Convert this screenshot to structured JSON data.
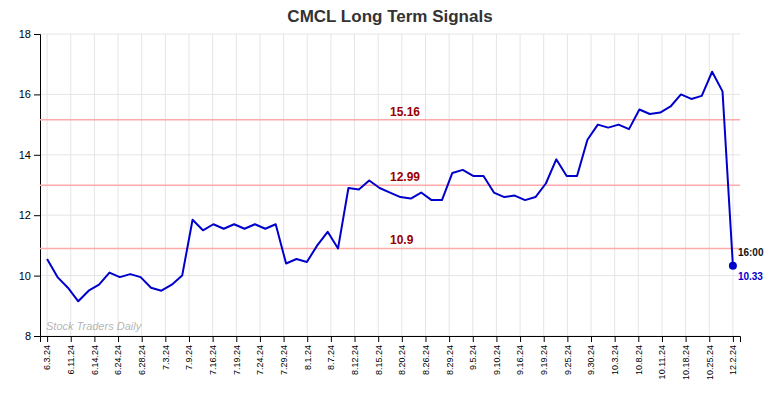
{
  "chart_data": {
    "type": "line",
    "title": "CMCL Long Term Signals",
    "color": "#0000cc",
    "x": [
      0,
      0.439394,
      0.878788,
      1.318182,
      1.757576,
      2.19697,
      2.636364,
      3.075758,
      3.515152,
      3.954545,
      4.393939,
      4.833333,
      5.272727,
      5.712121,
      6.151515,
      6.590909,
      7.030303,
      7.469697,
      7.909091,
      8.348485,
      8.787879,
      9.227273,
      9.666667,
      10.106061,
      10.545455,
      10.984848,
      11.424242,
      11.863636,
      12.30303,
      12.742424,
      13.181818,
      13.621212,
      14.060606,
      14.5,
      14.939394,
      15.378788,
      15.818182,
      16.257576,
      16.69697,
      17.136364,
      17.575758,
      18.015152,
      18.454545,
      18.893939,
      19.333333,
      19.772727,
      20.212121,
      20.651515,
      21.090909,
      21.530303,
      21.969697,
      22.409091,
      22.848485,
      23.287879,
      23.727273,
      24.166667,
      24.606061,
      25.045455,
      25.484848,
      25.924242,
      26.363636,
      26.80303,
      27.242424,
      27.681818,
      28.121212,
      28.560606,
      29
    ],
    "values": [
      10.55,
      9.95,
      9.6,
      9.15,
      9.5,
      9.7,
      10.1,
      9.95,
      10.05,
      9.95,
      9.6,
      9.5,
      9.7,
      10.0,
      11.85,
      11.5,
      11.7,
      11.55,
      11.7,
      11.55,
      11.7,
      11.55,
      11.7,
      10.4,
      10.55,
      10.45,
      11.0,
      11.45,
      10.9,
      12.9,
      12.85,
      13.15,
      12.9,
      12.75,
      12.6,
      12.55,
      12.75,
      12.5,
      12.5,
      13.4,
      13.5,
      13.3,
      13.3,
      12.75,
      12.6,
      12.65,
      12.5,
      12.6,
      13.05,
      13.85,
      13.3,
      13.3,
      14.5,
      15.0,
      14.9,
      15.0,
      14.85,
      15.5,
      15.35,
      15.4,
      15.6,
      16.0,
      15.85,
      15.95,
      16.75,
      16.1,
      10.33
    ],
    "xlim": [
      -0.3,
      29.3
    ],
    "xticks": [
      {
        "value": 0,
        "label": "6.3.24"
      },
      {
        "value": 1,
        "label": "6.11.24"
      },
      {
        "value": 2,
        "label": "6.14.24"
      },
      {
        "value": 3,
        "label": "6.24.24"
      },
      {
        "value": 4,
        "label": "6.28.24"
      },
      {
        "value": 5,
        "label": "7.3.24"
      },
      {
        "value": 6,
        "label": "7.9.24"
      },
      {
        "value": 7,
        "label": "7.16.24"
      },
      {
        "value": 8,
        "label": "7.19.24"
      },
      {
        "value": 9,
        "label": "7.24.24"
      },
      {
        "value": 10,
        "label": "7.29.24"
      },
      {
        "value": 11,
        "label": "8.1.24"
      },
      {
        "value": 12,
        "label": "8.7.24"
      },
      {
        "value": 13,
        "label": "8.12.24"
      },
      {
        "value": 14,
        "label": "8.15.24"
      },
      {
        "value": 15,
        "label": "8.20.24"
      },
      {
        "value": 16,
        "label": "8.26.24"
      },
      {
        "value": 17,
        "label": "8.29.24"
      },
      {
        "value": 18,
        "label": "9.5.24"
      },
      {
        "value": 19,
        "label": "9.10.24"
      },
      {
        "value": 20,
        "label": "9.16.24"
      },
      {
        "value": 21,
        "label": "9.19.24"
      },
      {
        "value": 22,
        "label": "9.25.24"
      },
      {
        "value": 23,
        "label": "9.30.24"
      },
      {
        "value": 24,
        "label": "10.3.24"
      },
      {
        "value": 25,
        "label": "10.8.24"
      },
      {
        "value": 26,
        "label": "10.11.24"
      },
      {
        "value": 27,
        "label": "10.18.24"
      },
      {
        "value": 28,
        "label": "10.25.24"
      },
      {
        "value": 29,
        "label": "12.2.24"
      }
    ],
    "ylim": [
      8,
      18
    ],
    "yticks": [
      8,
      10,
      12,
      14,
      16,
      18
    ],
    "grid": true,
    "hlines": [
      {
        "value": 10.9,
        "label": "10.9",
        "color": "#ffaaaa"
      },
      {
        "value": 12.99,
        "label": "12.99",
        "color": "#ffaaaa"
      },
      {
        "value": 15.16,
        "label": "15.16",
        "color": "#ffaaaa"
      }
    ],
    "last_point": {
      "x": 29,
      "y": 10.33,
      "time": "16:00",
      "label": "10.33"
    },
    "watermark": "Stock Traders Daily"
  }
}
